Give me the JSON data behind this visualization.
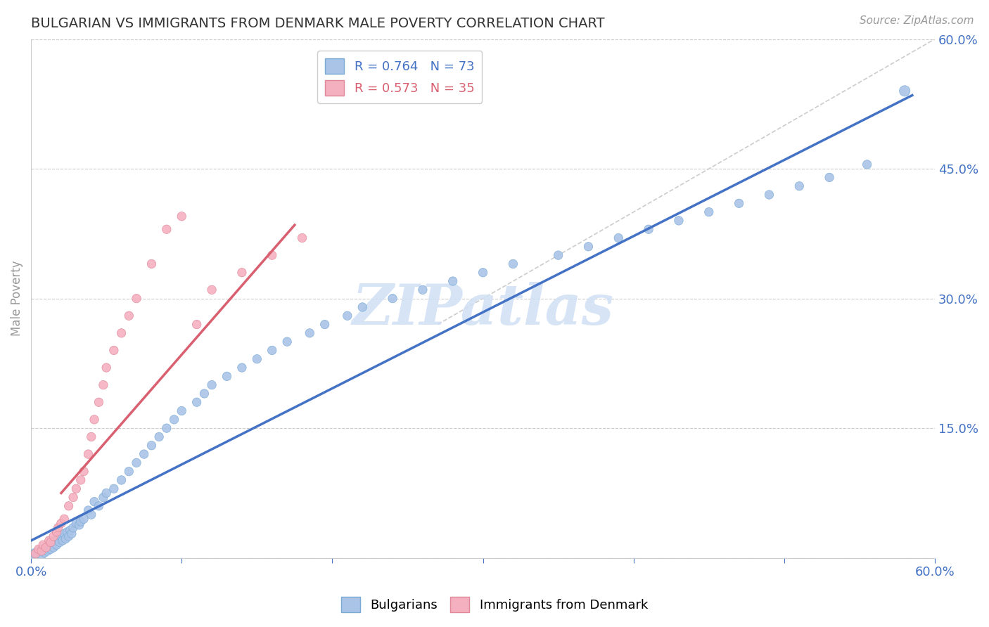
{
  "title": "BULGARIAN VS IMMIGRANTS FROM DENMARK MALE POVERTY CORRELATION CHART",
  "source": "Source: ZipAtlas.com",
  "ylabel": "Male Poverty",
  "xlim": [
    0.0,
    0.6
  ],
  "ylim": [
    0.0,
    0.6
  ],
  "blue_R": 0.764,
  "blue_N": 73,
  "pink_R": 0.573,
  "pink_N": 35,
  "blue_color": "#aac4e8",
  "pink_color": "#f5b0c0",
  "blue_edge_color": "#7aaad4",
  "pink_edge_color": "#e08898",
  "blue_line_color": "#4472c4",
  "pink_line_color": "#d96070",
  "blue_line": {
    "x0": 0.0,
    "y0": 0.02,
    "x1": 0.585,
    "y1": 0.535
  },
  "pink_line": {
    "x0": 0.02,
    "y0": 0.075,
    "x1": 0.175,
    "y1": 0.385
  },
  "diag_line": {
    "x0": 0.27,
    "y0": 0.27,
    "x1": 0.6,
    "y1": 0.6
  },
  "background_color": "#ffffff",
  "grid_color": "#cccccc",
  "axis_color": "#4472c4",
  "watermark_color": "#d0e0f5",
  "blue_scatter_x": [
    0.003,
    0.005,
    0.007,
    0.008,
    0.009,
    0.01,
    0.011,
    0.012,
    0.013,
    0.014,
    0.015,
    0.016,
    0.017,
    0.018,
    0.019,
    0.02,
    0.021,
    0.022,
    0.023,
    0.024,
    0.025,
    0.026,
    0.027,
    0.028,
    0.03,
    0.032,
    0.033,
    0.035,
    0.038,
    0.04,
    0.042,
    0.045,
    0.048,
    0.05,
    0.055,
    0.06,
    0.065,
    0.07,
    0.075,
    0.08,
    0.085,
    0.09,
    0.095,
    0.1,
    0.11,
    0.115,
    0.12,
    0.13,
    0.14,
    0.15,
    0.16,
    0.17,
    0.185,
    0.195,
    0.21,
    0.22,
    0.24,
    0.26,
    0.28,
    0.3,
    0.32,
    0.35,
    0.37,
    0.39,
    0.41,
    0.43,
    0.45,
    0.47,
    0.49,
    0.51,
    0.53,
    0.555,
    0.58
  ],
  "blue_scatter_y": [
    0.005,
    0.008,
    0.003,
    0.01,
    0.006,
    0.012,
    0.008,
    0.015,
    0.01,
    0.018,
    0.012,
    0.02,
    0.015,
    0.022,
    0.018,
    0.025,
    0.02,
    0.028,
    0.022,
    0.03,
    0.025,
    0.032,
    0.028,
    0.035,
    0.04,
    0.038,
    0.042,
    0.045,
    0.055,
    0.05,
    0.065,
    0.06,
    0.07,
    0.075,
    0.08,
    0.09,
    0.1,
    0.11,
    0.12,
    0.13,
    0.14,
    0.15,
    0.16,
    0.17,
    0.18,
    0.19,
    0.2,
    0.21,
    0.22,
    0.23,
    0.24,
    0.25,
    0.26,
    0.27,
    0.28,
    0.29,
    0.3,
    0.31,
    0.32,
    0.33,
    0.34,
    0.35,
    0.36,
    0.37,
    0.38,
    0.39,
    0.4,
    0.41,
    0.42,
    0.43,
    0.44,
    0.455,
    0.54
  ],
  "blue_scatter_sizes": [
    120,
    80,
    80,
    80,
    80,
    80,
    80,
    80,
    80,
    80,
    80,
    80,
    80,
    80,
    80,
    80,
    80,
    80,
    80,
    80,
    80,
    80,
    80,
    80,
    80,
    80,
    80,
    80,
    80,
    80,
    80,
    80,
    80,
    80,
    80,
    80,
    80,
    80,
    80,
    80,
    80,
    80,
    80,
    80,
    80,
    80,
    80,
    80,
    80,
    80,
    80,
    80,
    80,
    80,
    80,
    80,
    80,
    80,
    80,
    80,
    80,
    80,
    80,
    80,
    80,
    80,
    80,
    80,
    80,
    80,
    80,
    80,
    120
  ],
  "pink_scatter_x": [
    0.003,
    0.005,
    0.007,
    0.008,
    0.01,
    0.012,
    0.013,
    0.015,
    0.017,
    0.018,
    0.02,
    0.022,
    0.025,
    0.028,
    0.03,
    0.033,
    0.035,
    0.038,
    0.04,
    0.042,
    0.045,
    0.048,
    0.05,
    0.055,
    0.06,
    0.065,
    0.07,
    0.08,
    0.09,
    0.1,
    0.11,
    0.12,
    0.14,
    0.16,
    0.18
  ],
  "pink_scatter_y": [
    0.005,
    0.01,
    0.008,
    0.015,
    0.012,
    0.02,
    0.018,
    0.025,
    0.03,
    0.035,
    0.04,
    0.045,
    0.06,
    0.07,
    0.08,
    0.09,
    0.1,
    0.12,
    0.14,
    0.16,
    0.18,
    0.2,
    0.22,
    0.24,
    0.26,
    0.28,
    0.3,
    0.34,
    0.38,
    0.395,
    0.27,
    0.31,
    0.33,
    0.35,
    0.37
  ],
  "pink_scatter_sizes": [
    80,
    80,
    80,
    80,
    80,
    80,
    80,
    80,
    80,
    80,
    80,
    80,
    80,
    80,
    80,
    80,
    80,
    80,
    80,
    80,
    80,
    80,
    80,
    80,
    80,
    80,
    80,
    80,
    80,
    80,
    80,
    80,
    80,
    80,
    80
  ]
}
